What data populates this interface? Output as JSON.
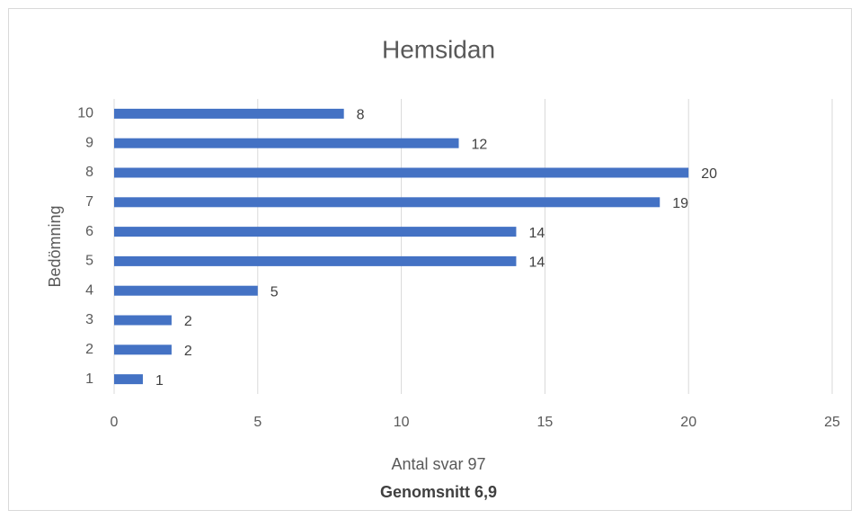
{
  "chart_data": {
    "type": "bar",
    "orientation": "horizontal",
    "title": "Hemsidan",
    "y_label": "Bedömning",
    "x_label": "Antal svar 97",
    "annotation": "Genomsnitt 6,9",
    "categories": [
      "1",
      "2",
      "3",
      "4",
      "5",
      "6",
      "7",
      "8",
      "9",
      "10"
    ],
    "values": [
      1,
      2,
      2,
      5,
      14,
      14,
      19,
      20,
      12,
      8
    ],
    "color": "#4472c4",
    "xlim": [
      0,
      25
    ],
    "xticks": [
      0,
      5,
      10,
      15,
      20,
      25
    ],
    "grid": true
  }
}
